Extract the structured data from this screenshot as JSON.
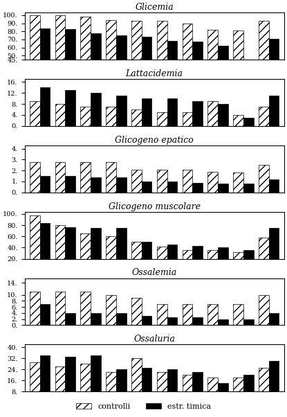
{
  "chart_data": [
    {
      "type": "bar",
      "title": "Glicemia",
      "categories": [
        null,
        null,
        null,
        null,
        null,
        null,
        null,
        null,
        null,
        null
      ],
      "series": [
        {
          "name": "controlli",
          "color": "white",
          "values": [
            100,
            100,
            98,
            94,
            93,
            93,
            90,
            82,
            81,
            93
          ]
        },
        {
          "name": "estr. timica",
          "color": "black",
          "values": [
            84,
            83,
            78,
            75,
            73,
            68,
            67,
            62,
            45,
            71
          ]
        }
      ],
      "ylim": [
        45,
        103
      ],
      "yticks": [
        {
          "value": 45,
          "label": "45."
        },
        {
          "value": 50,
          "label": "50."
        },
        {
          "value": 60,
          "label": "60."
        },
        {
          "value": 70,
          "label": "70."
        },
        {
          "value": 80,
          "label": "80."
        },
        {
          "value": 90,
          "label": "90."
        },
        {
          "value": 100,
          "label": "100."
        }
      ],
      "tick_labels": "y",
      "legend": "lower center"
    },
    {
      "type": "bar",
      "title": "Lattacidemia",
      "categories": [
        null,
        null,
        null,
        null,
        null,
        null,
        null,
        null,
        null,
        null
      ],
      "series": [
        {
          "name": "controlli",
          "color": "white",
          "values": [
            9,
            8,
            7,
            7,
            6,
            5,
            5,
            9,
            4,
            7
          ]
        },
        {
          "name": "estr. timica",
          "color": "black",
          "values": [
            14,
            13,
            12,
            11,
            10,
            10,
            9,
            8,
            3,
            11
          ]
        }
      ],
      "ylim": [
        0,
        17
      ],
      "yticks": [
        {
          "value": 0,
          "label": "0."
        },
        {
          "value": 4,
          "label": "4."
        },
        {
          "value": 8,
          "label": "8."
        },
        {
          "value": 12,
          "label": "12."
        },
        {
          "value": 16,
          "label": "16."
        }
      ],
      "tick_labels": "y",
      "legend": "lower center"
    },
    {
      "type": "bar",
      "title": "Glicogeno epatico",
      "categories": [
        null,
        null,
        null,
        null,
        null,
        null,
        null,
        null,
        null,
        null
      ],
      "series": [
        {
          "name": "controlli",
          "color": "white",
          "values": [
            2.8,
            2.8,
            2.8,
            2.8,
            2.1,
            2.1,
            2.1,
            1.9,
            1.8,
            2.5
          ]
        },
        {
          "name": "estr. timica",
          "color": "black",
          "values": [
            1.5,
            1.5,
            1.4,
            1.4,
            1.0,
            1.0,
            0.9,
            0.8,
            0.8,
            1.2
          ]
        }
      ],
      "ylim": [
        0,
        4.3
      ],
      "yticks": [
        {
          "value": 0,
          "label": "0."
        },
        {
          "value": 1,
          "label": "1."
        },
        {
          "value": 2,
          "label": "2."
        },
        {
          "value": 3,
          "label": "3."
        },
        {
          "value": 4,
          "label": "4."
        }
      ],
      "tick_labels": "y",
      "legend": "lower center"
    },
    {
      "type": "bar",
      "title": "Glicogeno muscolare",
      "categories": [
        null,
        null,
        null,
        null,
        null,
        null,
        null,
        null,
        null,
        null
      ],
      "series": [
        {
          "name": "controlli",
          "color": "white",
          "values": [
            98,
            80,
            65,
            60,
            50,
            42,
            36,
            35,
            32,
            58
          ]
        },
        {
          "name": "estr. timica",
          "color": "black",
          "values": [
            84,
            76,
            75,
            75,
            50,
            46,
            43,
            40,
            35,
            75
          ]
        }
      ],
      "ylim": [
        20,
        104
      ],
      "yticks": [
        {
          "value": 20,
          "label": "20."
        },
        {
          "value": 40,
          "label": "40."
        },
        {
          "value": 60,
          "label": "60."
        },
        {
          "value": 80,
          "label": "80."
        },
        {
          "value": 100,
          "label": "100."
        }
      ],
      "tick_labels": "y",
      "legend": "lower center"
    },
    {
      "type": "bar",
      "title": "Ossalemia",
      "categories": [
        null,
        null,
        null,
        null,
        null,
        null,
        null,
        null,
        null,
        null
      ],
      "series": [
        {
          "name": "controlli",
          "color": "white",
          "values": [
            11,
            11,
            11,
            10,
            9,
            7,
            7,
            7,
            7,
            10
          ]
        },
        {
          "name": "estr. timica",
          "color": "black",
          "values": [
            7,
            4,
            4,
            4,
            3,
            2.5,
            2.5,
            2,
            2,
            4
          ]
        }
      ],
      "ylim": [
        0,
        15.5
      ],
      "yticks": [
        {
          "value": 0,
          "label": "0."
        },
        {
          "value": 2,
          "label": "2."
        },
        {
          "value": 4,
          "label": "4."
        },
        {
          "value": 6,
          "label": "6."
        },
        {
          "value": 8,
          "label": "8."
        },
        {
          "value": 10,
          "label": "10."
        },
        {
          "value": 14,
          "label": "14."
        }
      ],
      "tick_labels": "y",
      "legend": "lower center"
    },
    {
      "type": "bar",
      "title": "Ossaluria",
      "categories": [
        null,
        null,
        null,
        null,
        null,
        null,
        null,
        null,
        null,
        null
      ],
      "series": [
        {
          "name": "controlli",
          "color": "white",
          "values": [
            29,
            26,
            28,
            22,
            32,
            22,
            20,
            18,
            18,
            25
          ]
        },
        {
          "name": "estr. timica",
          "color": "black",
          "values": [
            34,
            33,
            34,
            24,
            25,
            24,
            22,
            14,
            20,
            30
          ]
        }
      ],
      "ylim": [
        8,
        42
      ],
      "yticks": [
        {
          "value": 8,
          "label": "8."
        },
        {
          "value": 16,
          "label": "16."
        },
        {
          "value": 24,
          "label": "24."
        },
        {
          "value": 32,
          "label": "32."
        },
        {
          "value": 40,
          "label": "40."
        }
      ],
      "tick_labels": "y",
      "legend": "lower center"
    }
  ]
}
